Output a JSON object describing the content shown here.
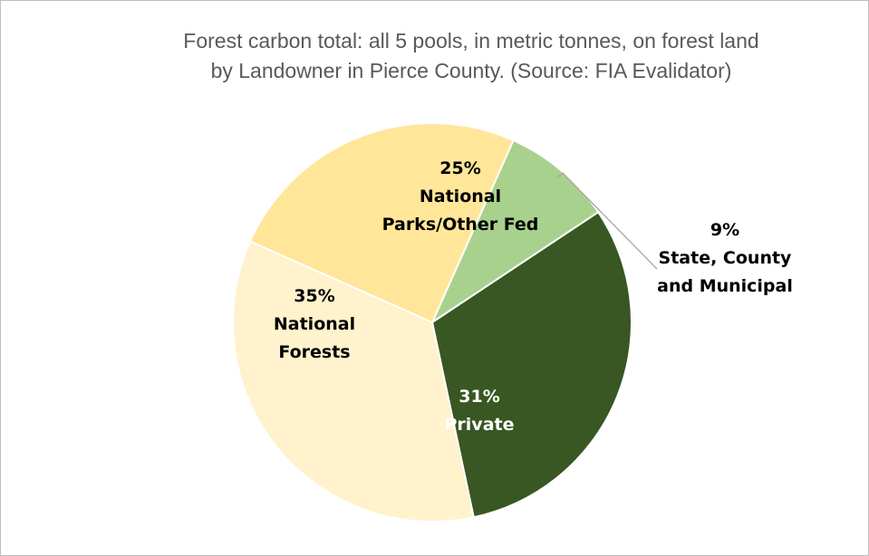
{
  "chart_data": {
    "type": "pie",
    "title_lines": [
      "Forest carbon total: all 5 pools, in metric tonnes, on forest land",
      "by Landowner in Pierce County. (Source: FIA Evalidator)"
    ],
    "start_angle_deg": 24,
    "slices": [
      {
        "key": "state",
        "label_lines": [
          "9%",
          "State, County",
          "and Municipal"
        ],
        "value": 9,
        "color": "#a9d18e",
        "text_color": "#000000"
      },
      {
        "key": "private",
        "label_lines": [
          "31%",
          "Private"
        ],
        "value": 31,
        "color": "#385723",
        "text_color": "#ffffff"
      },
      {
        "key": "national-forests",
        "label_lines": [
          "35%",
          "National",
          "Forests"
        ],
        "value": 35,
        "color": "#fff2cc",
        "text_color": "#000000"
      },
      {
        "key": "national-parks",
        "label_lines": [
          "25%",
          "National",
          "Parks/Other Fed"
        ],
        "value": 25,
        "color": "#ffe699",
        "text_color": "#000000"
      }
    ]
  }
}
